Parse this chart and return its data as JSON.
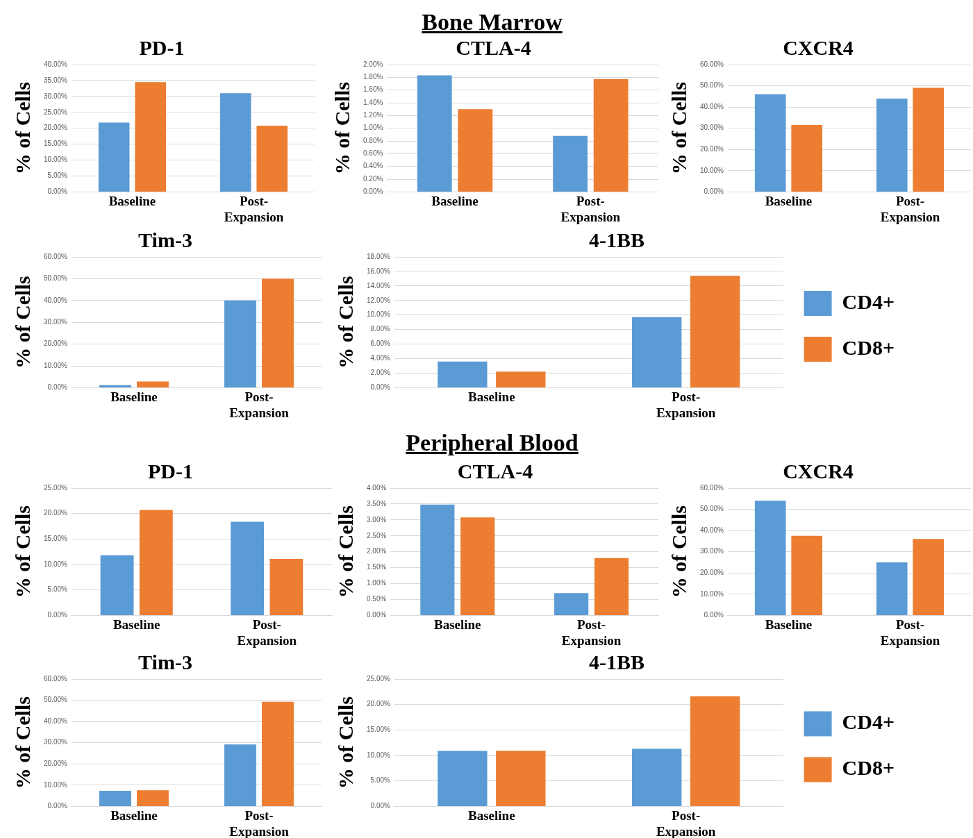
{
  "chart_data": [
    {
      "type": "other",
      "title": "Bone Marrow"
    },
    {
      "type": "bar",
      "title": "PD-1",
      "ylabel": "% of Cells",
      "categories": [
        "Baseline",
        "Post-Expansion"
      ],
      "series": [
        {
          "color": "#5b9bd5",
          "values": [
            21.8,
            31.0
          ]
        },
        {
          "color": "#ed7d31",
          "values": [
            34.5,
            20.8
          ]
        }
      ],
      "ylim": [
        0,
        40
      ],
      "yticks": [
        {
          "value": 0,
          "label": "0.00%"
        },
        {
          "value": 5,
          "label": "5.00%"
        },
        {
          "value": 10,
          "label": "10.00%"
        },
        {
          "value": 15,
          "label": "15.00%"
        },
        {
          "value": 20,
          "label": "20.00%"
        },
        {
          "value": 25,
          "label": "25.00%"
        },
        {
          "value": 30,
          "label": "30.00%"
        },
        {
          "value": 35,
          "label": "35.00%"
        },
        {
          "value": 40,
          "label": "40.00%"
        }
      ],
      "grid": "y"
    },
    {
      "type": "bar",
      "title": "CTLA-4",
      "ylabel": "% of Cells",
      "categories": [
        "Baseline",
        "Post-Expansion"
      ],
      "series": [
        {
          "color": "#5b9bd5",
          "values": [
            1.83,
            0.88
          ]
        },
        {
          "color": "#ed7d31",
          "values": [
            1.3,
            1.77
          ]
        }
      ],
      "ylim": [
        0,
        2
      ],
      "yticks": [
        {
          "value": 0,
          "label": "0.00%"
        },
        {
          "value": 0.2,
          "label": "0.20%"
        },
        {
          "value": 0.4,
          "label": "0.40%"
        },
        {
          "value": 0.6,
          "label": "0.60%"
        },
        {
          "value": 0.8,
          "label": "0.80%"
        },
        {
          "value": 1.0,
          "label": "1.00%"
        },
        {
          "value": 1.2,
          "label": "1.20%"
        },
        {
          "value": 1.4,
          "label": "1.40%"
        },
        {
          "value": 1.6,
          "label": "1.60%"
        },
        {
          "value": 1.8,
          "label": "1.80%"
        },
        {
          "value": 2.0,
          "label": "2.00%"
        }
      ],
      "grid": "y"
    },
    {
      "type": "bar",
      "title": "CXCR4",
      "ylabel": "% of Cells",
      "categories": [
        "Baseline",
        "Post-Expansion"
      ],
      "series": [
        {
          "color": "#5b9bd5",
          "values": [
            46,
            44
          ]
        },
        {
          "color": "#ed7d31",
          "values": [
            31.5,
            49
          ]
        }
      ],
      "ylim": [
        0,
        60
      ],
      "yticks": [
        {
          "value": 0,
          "label": "0.00%"
        },
        {
          "value": 10,
          "label": "10.00%"
        },
        {
          "value": 20,
          "label": "20.00%"
        },
        {
          "value": 30,
          "label": "30.00%"
        },
        {
          "value": 40,
          "label": "40.00%"
        },
        {
          "value": 50,
          "label": "50.00%"
        },
        {
          "value": 60,
          "label": "60.00%"
        }
      ],
      "grid": "y"
    },
    {
      "type": "bar",
      "title": "Tim-3",
      "ylabel": "% of Cells",
      "categories": [
        "Baseline",
        "Post-Expansion"
      ],
      "series": [
        {
          "color": "#5b9bd5",
          "values": [
            1.2,
            40
          ]
        },
        {
          "color": "#ed7d31",
          "values": [
            2.8,
            50
          ]
        }
      ],
      "ylim": [
        0,
        60
      ],
      "yticks": [
        {
          "value": 0,
          "label": "0.00%"
        },
        {
          "value": 10,
          "label": "10.00%"
        },
        {
          "value": 20,
          "label": "20.00%"
        },
        {
          "value": 30,
          "label": "30.00%"
        },
        {
          "value": 40,
          "label": "40.00%"
        },
        {
          "value": 50,
          "label": "50.00%"
        },
        {
          "value": 60,
          "label": "60.00%"
        }
      ],
      "grid": "y"
    },
    {
      "type": "bar",
      "title": "4-1BB",
      "ylabel": "% of Cells",
      "categories": [
        "Baseline",
        "Post-Expansion"
      ],
      "series": [
        {
          "name": "CD4+",
          "color": "#5b9bd5",
          "values": [
            3.6,
            9.7
          ]
        },
        {
          "name": "CD8+",
          "color": "#ed7d31",
          "values": [
            2.2,
            15.4
          ]
        }
      ],
      "ylim": [
        0,
        18
      ],
      "yticks": [
        {
          "value": 0,
          "label": "0.00%"
        },
        {
          "value": 2,
          "label": "2.00%"
        },
        {
          "value": 4,
          "label": "4.00%"
        },
        {
          "value": 6,
          "label": "6.00%"
        },
        {
          "value": 8,
          "label": "8.00%"
        },
        {
          "value": 10,
          "label": "10.00%"
        },
        {
          "value": 12,
          "label": "12.00%"
        },
        {
          "value": 14,
          "label": "14.00%"
        },
        {
          "value": 16,
          "label": "16.00%"
        },
        {
          "value": 18,
          "label": "18.00%"
        }
      ],
      "grid": "y",
      "legend": "right"
    },
    {
      "type": "other",
      "title": "Peripheral Blood"
    },
    {
      "type": "bar",
      "title": "PD-1",
      "ylabel": "% of Cells",
      "categories": [
        "Baseline",
        "Post-Expansion"
      ],
      "series": [
        {
          "color": "#5b9bd5",
          "values": [
            11.8,
            18.4
          ]
        },
        {
          "color": "#ed7d31",
          "values": [
            20.7,
            11.1
          ]
        }
      ],
      "ylim": [
        0,
        25
      ],
      "yticks": [
        {
          "value": 0,
          "label": "0.00%"
        },
        {
          "value": 5,
          "label": "5.00%"
        },
        {
          "value": 10,
          "label": "10.00%"
        },
        {
          "value": 15,
          "label": "15.00%"
        },
        {
          "value": 20,
          "label": "20.00%"
        },
        {
          "value": 25,
          "label": "25.00%"
        }
      ],
      "grid": "y"
    },
    {
      "type": "bar",
      "title": "CTLA-4",
      "ylabel": "% of Cells",
      "categories": [
        "Baseline",
        "Post-Expansion"
      ],
      "series": [
        {
          "color": "#5b9bd5",
          "values": [
            3.48,
            0.7
          ]
        },
        {
          "color": "#ed7d31",
          "values": [
            3.08,
            1.8
          ]
        }
      ],
      "ylim": [
        0,
        4
      ],
      "yticks": [
        {
          "value": 0,
          "label": "0.00%"
        },
        {
          "value": 0.5,
          "label": "0.50%"
        },
        {
          "value": 1.0,
          "label": "1.00%"
        },
        {
          "value": 1.5,
          "label": "1.50%"
        },
        {
          "value": 2.0,
          "label": "2.00%"
        },
        {
          "value": 2.5,
          "label": "2.50%"
        },
        {
          "value": 3.0,
          "label": "3.00%"
        },
        {
          "value": 3.5,
          "label": "3.50%"
        },
        {
          "value": 4.0,
          "label": "4.00%"
        }
      ],
      "grid": "y"
    },
    {
      "type": "bar",
      "title": "CXCR4",
      "ylabel": "% of Cells",
      "categories": [
        "Baseline",
        "Post-Expansion"
      ],
      "series": [
        {
          "color": "#5b9bd5",
          "values": [
            54,
            25
          ]
        },
        {
          "color": "#ed7d31",
          "values": [
            37.5,
            36
          ]
        }
      ],
      "ylim": [
        0,
        60
      ],
      "yticks": [
        {
          "value": 0,
          "label": "0.00%"
        },
        {
          "value": 10,
          "label": "10.00%"
        },
        {
          "value": 20,
          "label": "20.00%"
        },
        {
          "value": 30,
          "label": "30.00%"
        },
        {
          "value": 40,
          "label": "40.00%"
        },
        {
          "value": 50,
          "label": "50.00%"
        },
        {
          "value": 60,
          "label": "60.00%"
        }
      ],
      "grid": "y"
    },
    {
      "type": "bar",
      "title": "Tim-3",
      "ylabel": "% of Cells",
      "categories": [
        "Baseline",
        "Post-Expansion"
      ],
      "series": [
        {
          "color": "#5b9bd5",
          "values": [
            7.3,
            29.2
          ]
        },
        {
          "color": "#ed7d31",
          "values": [
            7.6,
            49.3
          ]
        }
      ],
      "ylim": [
        0,
        60
      ],
      "yticks": [
        {
          "value": 0,
          "label": "0.00%"
        },
        {
          "value": 10,
          "label": "10.00%"
        },
        {
          "value": 20,
          "label": "20.00%"
        },
        {
          "value": 30,
          "label": "30.00%"
        },
        {
          "value": 40,
          "label": "40.00%"
        },
        {
          "value": 50,
          "label": "50.00%"
        },
        {
          "value": 60,
          "label": "60.00%"
        }
      ],
      "grid": "y"
    },
    {
      "type": "bar",
      "title": "4-1BB",
      "ylabel": "% of Cells",
      "categories": [
        "Baseline",
        "Post-Expansion"
      ],
      "series": [
        {
          "name": "CD4+",
          "color": "#5b9bd5",
          "values": [
            10.9,
            11.3
          ]
        },
        {
          "name": "CD8+",
          "color": "#ed7d31",
          "values": [
            10.9,
            21.6
          ]
        }
      ],
      "ylim": [
        0,
        25
      ],
      "yticks": [
        {
          "value": 0,
          "label": "0.00%"
        },
        {
          "value": 5,
          "label": "5.00%"
        },
        {
          "value": 10,
          "label": "10.00%"
        },
        {
          "value": 15,
          "label": "15.00%"
        },
        {
          "value": 20,
          "label": "20.00%"
        },
        {
          "value": 25,
          "label": "25.00%"
        }
      ],
      "grid": "y",
      "legend": "right"
    }
  ]
}
